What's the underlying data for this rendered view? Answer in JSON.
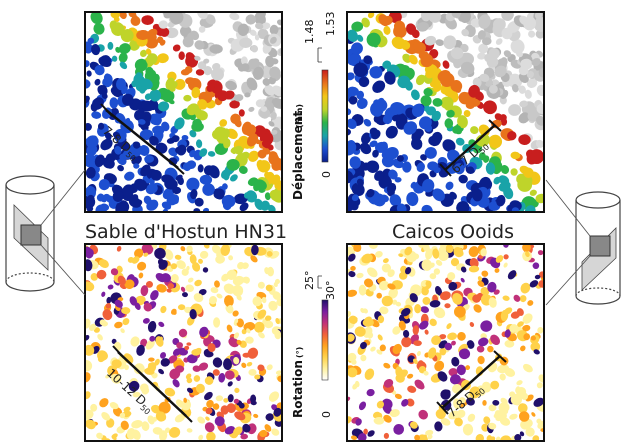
{
  "figure": {
    "captions": {
      "left": "Sable d'Hostun HN31",
      "right": "Caicos Ooids"
    },
    "panels": [
      {
        "id": "hostun-displacement",
        "band_label": "7-8 D",
        "band_sub": "50"
      },
      {
        "id": "caicos-displacement",
        "band_label": "6-7 D",
        "band_sub": "50"
      },
      {
        "id": "hostun-rotation",
        "band_label": "10-12 D",
        "band_sub": "50"
      },
      {
        "id": "caicos-rotation",
        "band_label": "7-8 D",
        "band_sub": "50"
      }
    ],
    "colorbars": {
      "displacement": {
        "title": "Déplacement",
        "unit": "(mm)",
        "min_label": "0",
        "mid_label": "1.48",
        "max_label": "1.53",
        "colors": [
          "#0a1f8c",
          "#1d4fd0",
          "#19a3a8",
          "#2bb34a",
          "#bfd42a",
          "#f2c618",
          "#e8731c",
          "#c81e1e"
        ]
      },
      "rotation": {
        "title": "Rotation",
        "unit": "(°)",
        "min_label": "0",
        "mid_label": "25°",
        "max_label": "30°",
        "colors": [
          "#ffffff",
          "#fff2a0",
          "#ffd24a",
          "#ffa21e",
          "#f0603a",
          "#c0317a",
          "#7a1fa0",
          "#20106a"
        ]
      }
    },
    "icons": {
      "left": "cylinder-sample-icon",
      "right": "cylinder-sample-icon"
    }
  }
}
